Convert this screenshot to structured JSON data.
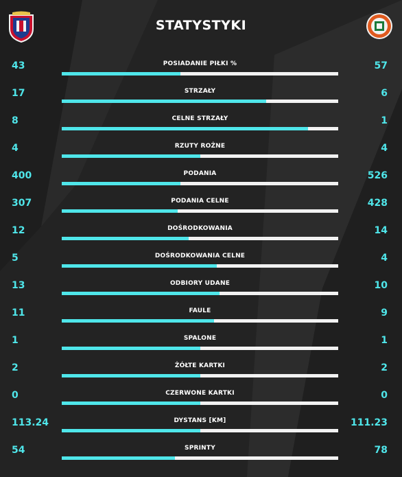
{
  "title": "STATYSTYKI",
  "colors": {
    "accent": "#4fe6ea",
    "bar_bg": "#f2f2f2",
    "background": "#232323"
  },
  "home_crest": "piast-gliwice-crest-icon",
  "away_crest": "zaglebie-lubin-crest-icon",
  "stats": [
    {
      "label": "POSIADANIE PIŁKI %",
      "home": "43",
      "away": "57",
      "home_share": 0.43
    },
    {
      "label": "STRZAŁY",
      "home": "17",
      "away": "6",
      "home_share": 0.74
    },
    {
      "label": "CELNE STRZAŁY",
      "home": "8",
      "away": "1",
      "home_share": 0.89
    },
    {
      "label": "RZUTY ROŻNE",
      "home": "4",
      "away": "4",
      "home_share": 0.5
    },
    {
      "label": "PODANIA",
      "home": "400",
      "away": "526",
      "home_share": 0.43
    },
    {
      "label": "PODANIA CELNE",
      "home": "307",
      "away": "428",
      "home_share": 0.42
    },
    {
      "label": "DOŚRODKOWANIA",
      "home": "12",
      "away": "14",
      "home_share": 0.46
    },
    {
      "label": "DOŚRODKOWANIA CELNE",
      "home": "5",
      "away": "4",
      "home_share": 0.56
    },
    {
      "label": "ODBIORY UDANE",
      "home": "13",
      "away": "10",
      "home_share": 0.57
    },
    {
      "label": "FAULE",
      "home": "11",
      "away": "9",
      "home_share": 0.55
    },
    {
      "label": "SPALONE",
      "home": "1",
      "away": "1",
      "home_share": 0.5
    },
    {
      "label": "ŻÓŁTE KARTKI",
      "home": "2",
      "away": "2",
      "home_share": 0.5
    },
    {
      "label": "CZERWONE KARTKI",
      "home": "0",
      "away": "0",
      "home_share": 0.5
    },
    {
      "label": "DYSTANS [KM]",
      "home": "113.24",
      "away": "111.23",
      "home_share": 0.5
    },
    {
      "label": "SPRINTY",
      "home": "54",
      "away": "78",
      "home_share": 0.41
    }
  ]
}
